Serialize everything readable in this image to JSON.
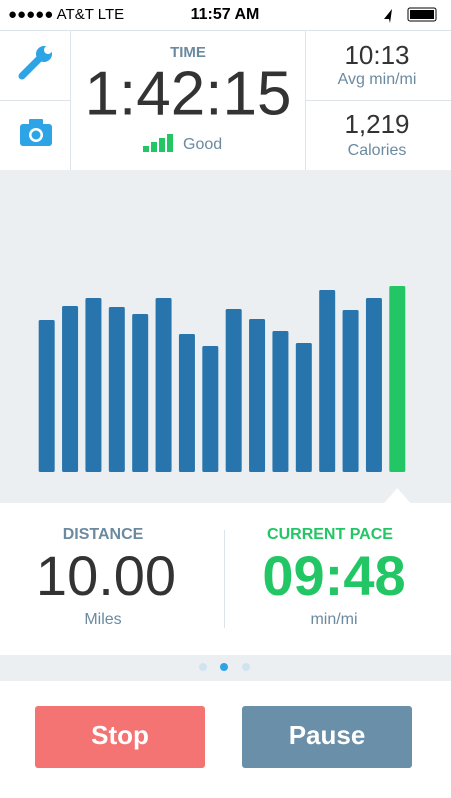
{
  "status_bar": {
    "carrier": "●●●●● AT&T  LTE",
    "time": "11:57 AM"
  },
  "time_panel": {
    "label": "TIME",
    "value": "1:42:15",
    "signal": "Good"
  },
  "avg_pace": {
    "value": "10:13",
    "label": "Avg min/mi"
  },
  "calories": {
    "value": "1,219",
    "label": "Calories"
  },
  "splits": {
    "values": [
      152,
      166,
      174,
      165,
      158,
      174,
      138,
      126,
      163,
      153,
      141,
      129,
      182,
      162,
      174,
      186
    ],
    "ylim": [
      0,
      186
    ],
    "color": "#2775ac",
    "current_color": "#22c665"
  },
  "distance": {
    "label": "DISTANCE",
    "value": "10.00",
    "unit": "Miles"
  },
  "current_pace": {
    "label": "CURRENT PACE",
    "value": "09:48",
    "unit": "min/mi"
  },
  "buttons": {
    "stop": "Stop",
    "pause": "Pause"
  }
}
